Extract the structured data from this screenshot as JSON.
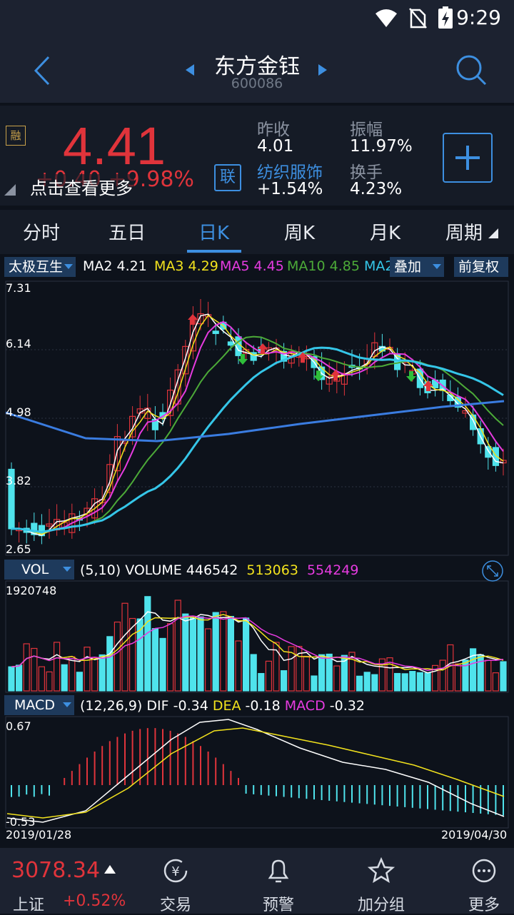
{
  "status_bar": {
    "time": "9:29"
  },
  "header": {
    "title": "东方金钰",
    "code": "600086"
  },
  "quote": {
    "rong_badge": "融",
    "price": "4.41",
    "change_text": "+0.40  +9.98%",
    "hint": "点击查看更多",
    "lian_badge": "联",
    "prev_close_label": "昨收",
    "prev_close": "4.01",
    "amplitude_label": "振幅",
    "amplitude": "11.97%",
    "sector": "纺织服饰",
    "sector_change": "+1.54%",
    "turnover_label": "换手",
    "turnover": "4.23%"
  },
  "tabs": [
    "分时",
    "五日",
    "日K",
    "周K",
    "月K",
    "周期"
  ],
  "active_tab": 2,
  "main_chart": {
    "indicator": "太极互生",
    "ma": [
      {
        "name": "MA2",
        "value": "4.21",
        "color": "#ffffff"
      },
      {
        "name": "MA3",
        "value": "4.29",
        "color": "#f2e21d"
      },
      {
        "name": "MA5",
        "value": "4.45",
        "color": "#e63be0"
      },
      {
        "name": "MA10",
        "value": "4.85",
        "color": "#4caa38"
      },
      {
        "name": "MA2",
        "value": "",
        "color": "#35c6e8"
      }
    ],
    "overlay_btn": "叠加",
    "adjust_btn": "前复权",
    "y_ticks": [
      "7.31",
      "6.14",
      "4.98",
      "3.82",
      "2.65"
    ]
  },
  "volume_chart": {
    "indicator": "VOL",
    "params": "(5,10)",
    "label": "VOLUME",
    "v1": "446542",
    "v2": "513063",
    "v3": "554249",
    "max_label": "1920748"
  },
  "macd_chart": {
    "indicator": "MACD",
    "params": "(12,26,9)",
    "dif_label": "DIF",
    "dif": "-0.34",
    "dea_label": "DEA",
    "dea": "-0.18",
    "macd_label": "MACD",
    "macd": "-0.32",
    "top_label": "0.67",
    "bottom_label": "-0.53",
    "start_date": "2019/01/28",
    "end_date": "2019/04/30"
  },
  "bottom_bar": {
    "index_value": "3078.34",
    "index_name": "上证",
    "index_change": "+0.52%",
    "nav": [
      "交易",
      "预警",
      "加分组",
      "更多"
    ]
  },
  "colors": {
    "up": "#e0343b",
    "down": "#4fe3ec",
    "accent": "#3d8fe0",
    "header_bg": "#1c2230"
  }
}
